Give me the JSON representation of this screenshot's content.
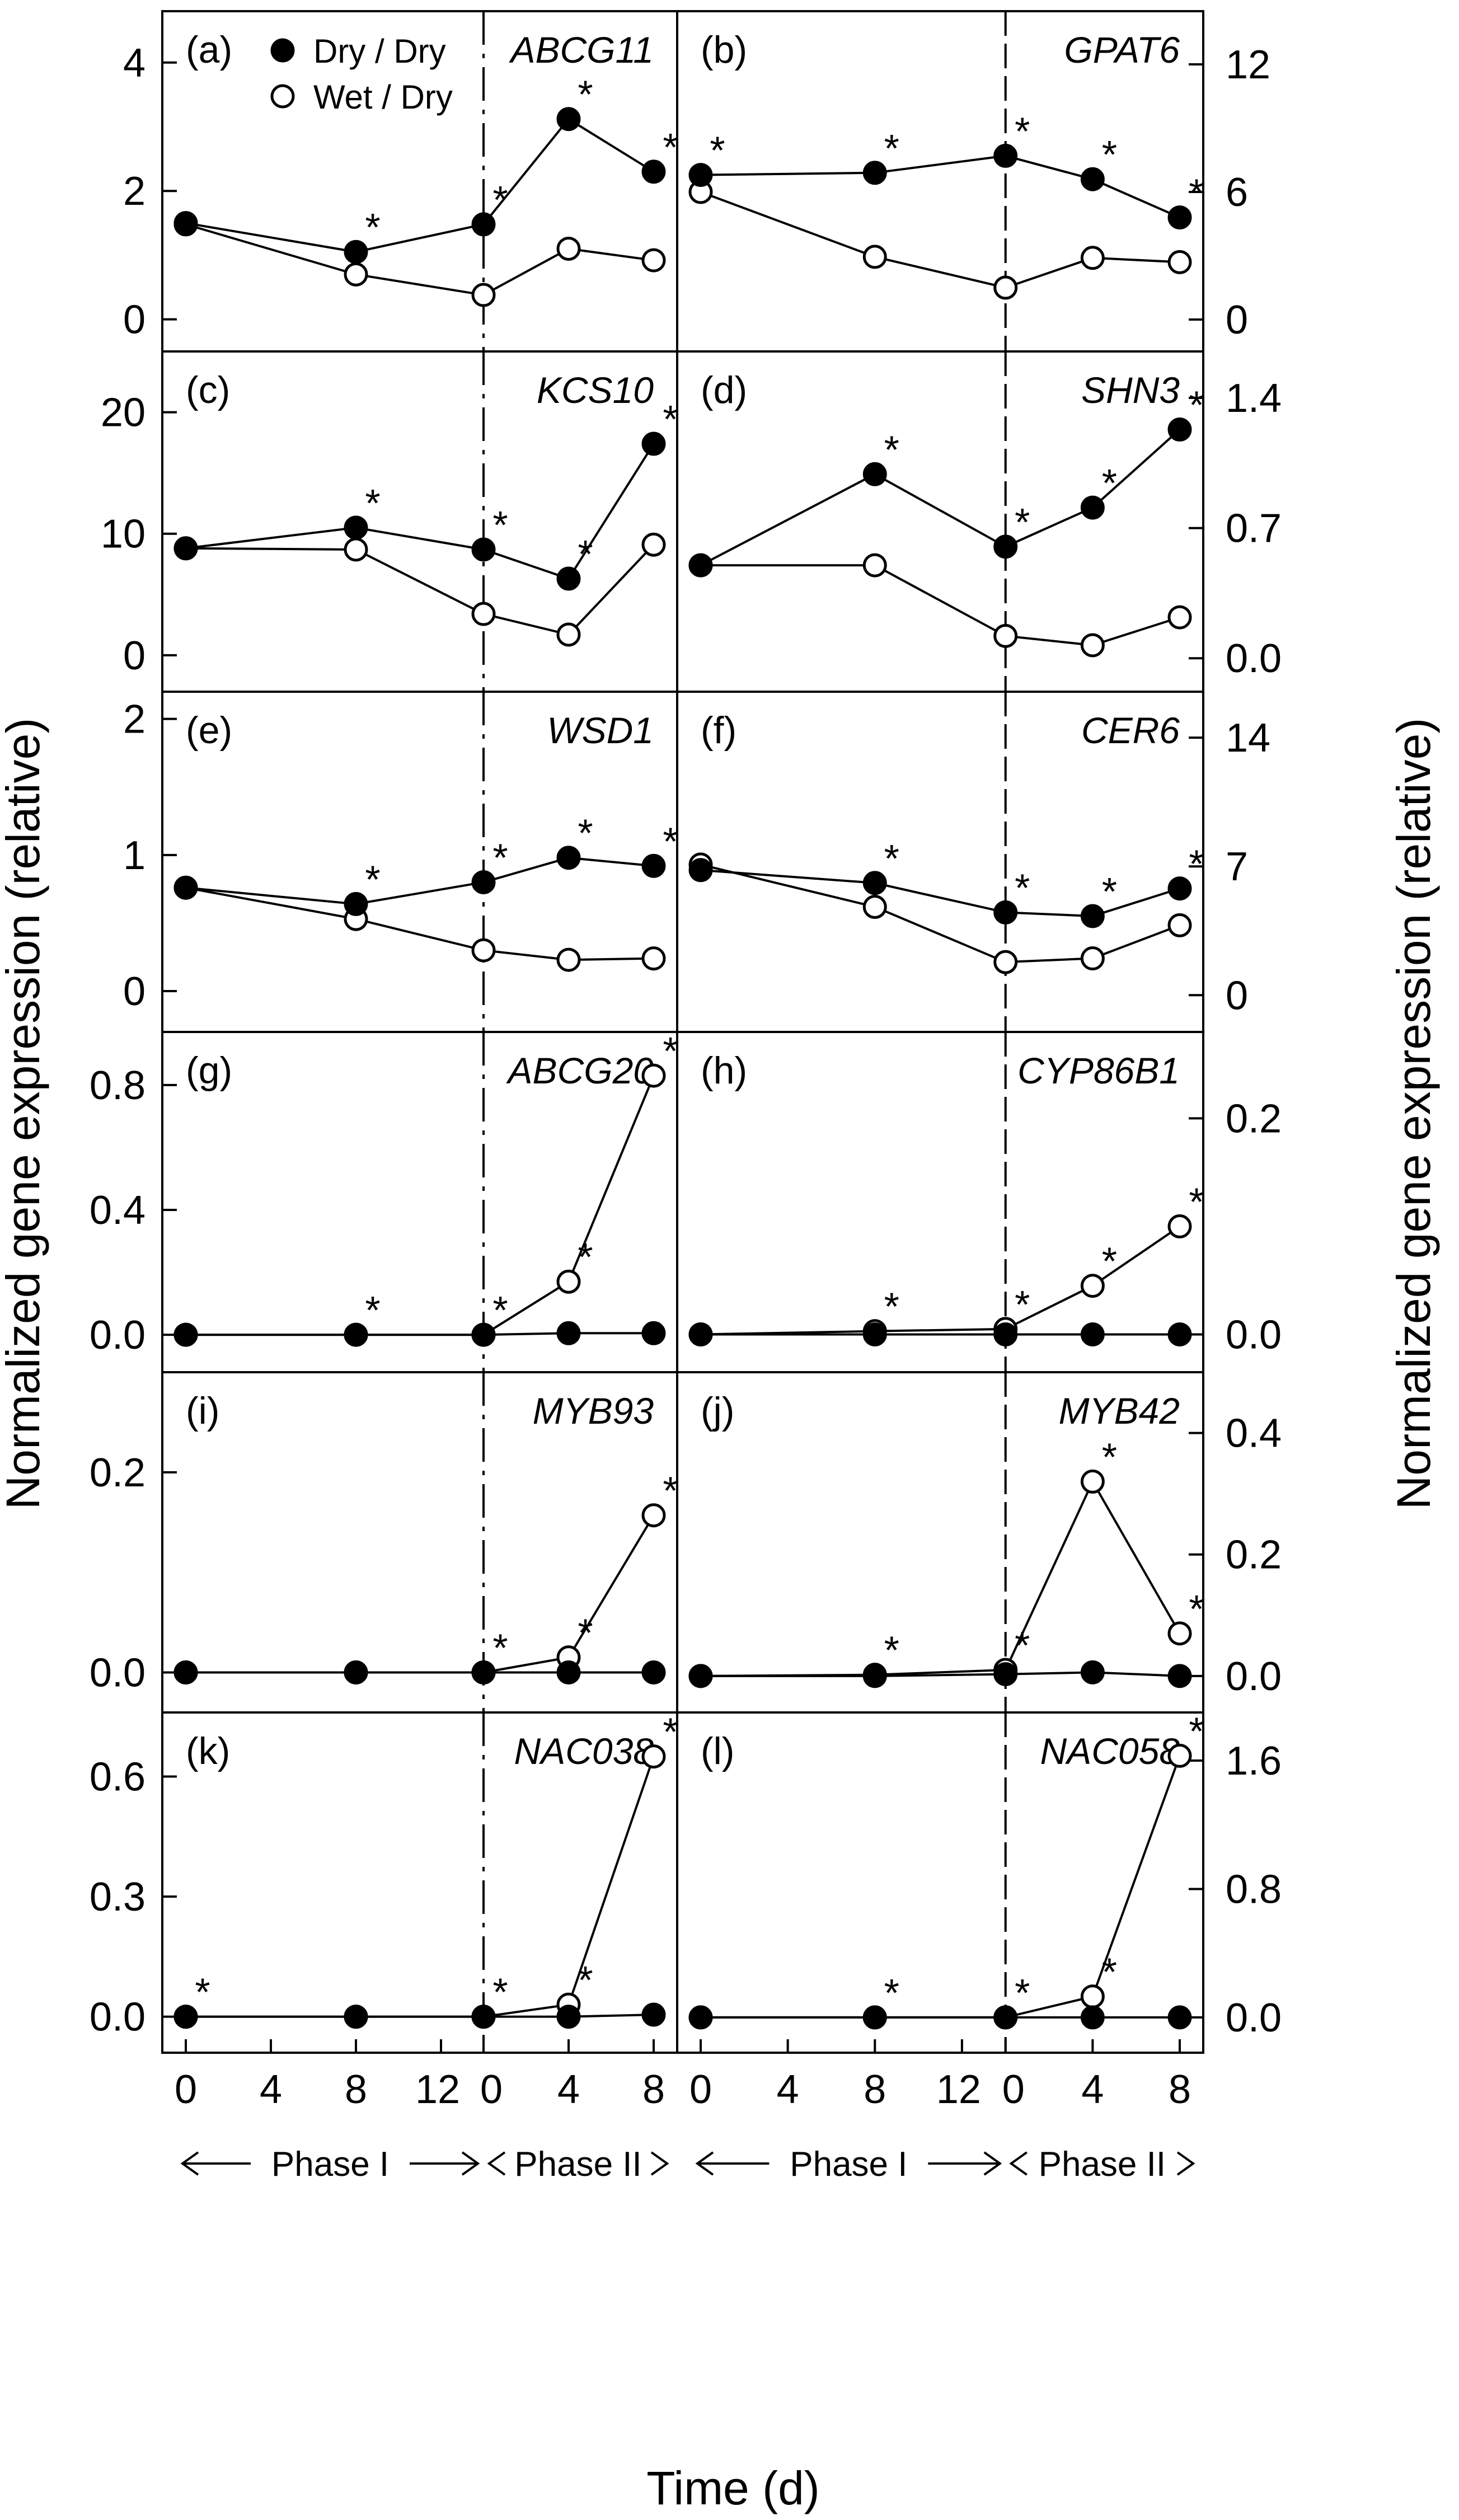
{
  "chart_data": {
    "type": "line",
    "ylabel_left": "Normalized gene expression (relative)",
    "ylabel_right": "Normalized gene expression (relative)",
    "xlabel": "Time (d)",
    "x_ticks": [
      "0",
      "4",
      "8",
      "12",
      "0",
      "4",
      "8"
    ],
    "phase_labels": [
      "Phase I",
      "Phase II"
    ],
    "legend": {
      "placement": "top-left of panel (a)",
      "entries": [
        {
          "name": "Dry / Dry",
          "marker": "filled-circle"
        },
        {
          "name": "Wet / Dry",
          "marker": "open-circle"
        }
      ]
    },
    "x_days": [
      0,
      8,
      14,
      18,
      22
    ],
    "phase_boundary_day": 14,
    "panels": [
      {
        "letter": "(a)",
        "gene": "ABCG11",
        "side": "left",
        "ylim": [
          -0.5,
          4.8
        ],
        "yticks": [
          0,
          2,
          4
        ],
        "series": [
          {
            "name": "Dry / Dry",
            "values": [
              1.5,
              1.05,
              1.48,
              3.12,
              2.3
            ]
          },
          {
            "name": "Wet / Dry",
            "values": [
              1.48,
              0.7,
              0.38,
              1.1,
              0.92
            ]
          }
        ],
        "stars": [
          1,
          2,
          3,
          4
        ]
      },
      {
        "letter": "(b)",
        "gene": "GPAT6",
        "side": "right",
        "ylim": [
          -1.5,
          14.5
        ],
        "yticks": [
          0,
          6,
          12
        ],
        "series": [
          {
            "name": "Dry / Dry",
            "values": [
              6.8,
              6.9,
              7.7,
              6.6,
              4.8
            ]
          },
          {
            "name": "Wet / Dry",
            "values": [
              6.0,
              2.95,
              1.5,
              2.9,
              2.7
            ]
          }
        ],
        "stars": [
          0,
          1,
          2,
          3,
          4
        ]
      },
      {
        "letter": "(c)",
        "gene": "KCS10",
        "side": "left",
        "ylim": [
          -3,
          25
        ],
        "yticks": [
          0,
          10,
          20
        ],
        "series": [
          {
            "name": "Dry / Dry",
            "values": [
              8.8,
              10.5,
              8.7,
              6.3,
              17.4
            ]
          },
          {
            "name": "Wet / Dry",
            "values": [
              8.8,
              8.7,
              3.4,
              1.7,
              9.1
            ]
          }
        ],
        "stars": [
          1,
          2,
          3,
          4
        ]
      },
      {
        "letter": "(d)",
        "gene": "SHN3",
        "side": "right",
        "ylim": [
          -0.18,
          1.65
        ],
        "yticks": [
          0.0,
          0.7,
          1.4
        ],
        "series": [
          {
            "name": "Dry / Dry",
            "values": [
              0.5,
              0.99,
              0.6,
              0.81,
              1.23
            ]
          },
          {
            "name": "Wet / Dry",
            "values": [
              0.5,
              0.5,
              0.12,
              0.07,
              0.22
            ]
          }
        ],
        "stars": [
          1,
          2,
          3,
          4
        ]
      },
      {
        "letter": "(e)",
        "gene": "WSD1",
        "side": "left",
        "ylim": [
          -0.3,
          2.2
        ],
        "yticks": [
          0,
          1,
          2
        ],
        "series": [
          {
            "name": "Dry / Dry",
            "values": [
              0.76,
              0.64,
              0.8,
              0.98,
              0.92
            ]
          },
          {
            "name": "Wet / Dry",
            "values": [
              0.76,
              0.53,
              0.3,
              0.23,
              0.24
            ]
          }
        ],
        "stars": [
          1,
          2,
          3,
          4
        ]
      },
      {
        "letter": "(f)",
        "gene": "CER6",
        "side": "right",
        "ylim": [
          -2,
          16.5
        ],
        "yticks": [
          0,
          7,
          14
        ],
        "series": [
          {
            "name": "Dry / Dry",
            "values": [
              6.8,
              6.1,
              4.5,
              4.3,
              5.8
            ]
          },
          {
            "name": "Wet / Dry",
            "values": [
              7.1,
              4.8,
              1.8,
              2.0,
              3.8
            ]
          }
        ],
        "stars": [
          1,
          2,
          3,
          4
        ]
      },
      {
        "letter": "(g)",
        "gene": "ABCG20",
        "side": "left",
        "ylim": [
          -0.12,
          0.97
        ],
        "yticks": [
          0.0,
          0.4,
          0.8
        ],
        "series": [
          {
            "name": "Dry / Dry",
            "values": [
              0.0,
              0.0,
              0.0,
              0.005,
              0.005
            ]
          },
          {
            "name": "Wet / Dry",
            "values": [
              0.0,
              0.0,
              0.0,
              0.17,
              0.83
            ]
          }
        ],
        "stars": [
          1,
          2,
          3,
          4
        ]
      },
      {
        "letter": "(h)",
        "gene": "CYP86B1",
        "side": "right",
        "ylim": [
          -0.035,
          0.28
        ],
        "yticks": [
          0.0,
          0.2
        ],
        "series": [
          {
            "name": "Dry / Dry",
            "values": [
              0.0,
              0.0,
              0.0,
              0.0,
              0.0
            ]
          },
          {
            "name": "Wet / Dry",
            "values": [
              0.0,
              0.003,
              0.005,
              0.045,
              0.1
            ]
          }
        ],
        "stars": [
          1,
          2,
          3,
          4
        ]
      },
      {
        "letter": "(i)",
        "gene": "MYB93",
        "side": "left",
        "ylim": [
          -0.04,
          0.3
        ],
        "yticks": [
          0.0,
          0.2
        ],
        "series": [
          {
            "name": "Dry / Dry",
            "values": [
              0.0,
              0.0,
              0.0,
              0.0,
              0.0
            ]
          },
          {
            "name": "Wet / Dry",
            "values": [
              0.0,
              0.0,
              0.0,
              0.015,
              0.157
            ]
          }
        ],
        "stars": [
          2,
          3,
          4
        ]
      },
      {
        "letter": "(j)",
        "gene": "MYB42",
        "side": "right",
        "ylim": [
          -0.06,
          0.5
        ],
        "yticks": [
          0.0,
          0.2,
          0.4
        ],
        "series": [
          {
            "name": "Dry / Dry",
            "values": [
              0.0,
              0.0,
              0.003,
              0.006,
              0.0
            ]
          },
          {
            "name": "Wet / Dry",
            "values": [
              0.0,
              0.002,
              0.01,
              0.32,
              0.07
            ]
          }
        ],
        "stars": [
          1,
          2,
          3,
          4
        ]
      },
      {
        "letter": "(k)",
        "gene": "NAC038",
        "side": "left",
        "ylim": [
          -0.09,
          0.76
        ],
        "yticks": [
          0.0,
          0.3,
          0.6
        ],
        "series": [
          {
            "name": "Dry / Dry",
            "values": [
              0.0,
              0.0,
              0.0,
              0.0,
              0.005
            ]
          },
          {
            "name": "Wet / Dry",
            "values": [
              0.0,
              0.0,
              0.0,
              0.03,
              0.65
            ]
          }
        ],
        "stars": [
          0,
          2,
          3,
          4
        ]
      },
      {
        "letter": "(l)",
        "gene": "NAC058",
        "side": "right",
        "ylim": [
          -0.22,
          1.9
        ],
        "yticks": [
          0.0,
          0.8,
          1.6
        ],
        "series": [
          {
            "name": "Dry / Dry",
            "values": [
              0.0,
              0.0,
              0.0,
              0.0,
              0.0
            ]
          },
          {
            "name": "Wet / Dry",
            "values": [
              0.0,
              0.0,
              0.0,
              0.13,
              1.63
            ]
          }
        ],
        "stars": [
          1,
          2,
          3,
          4
        ]
      }
    ]
  }
}
